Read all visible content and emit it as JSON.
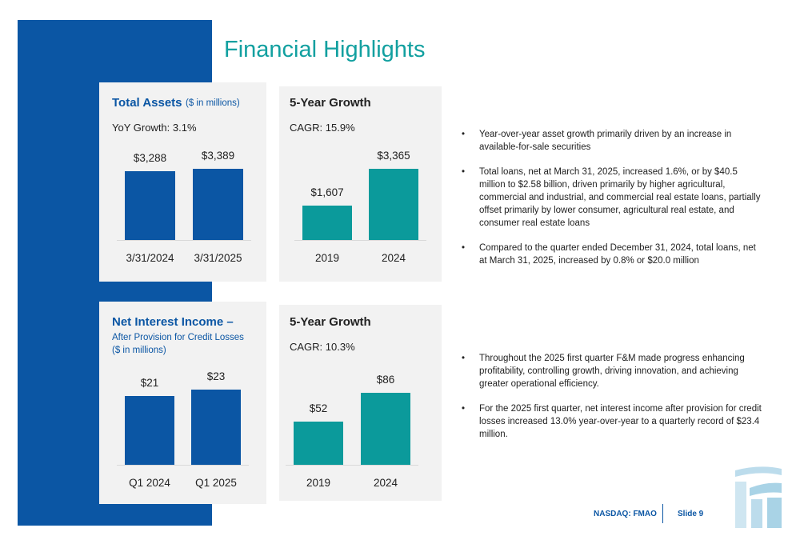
{
  "title": "Financial Highlights",
  "chart_data": [
    {
      "type": "bar",
      "title": "Total Assets",
      "subtitle": [
        "($ in millions)"
      ],
      "annotation": "YoY Growth: 3.1%",
      "categories": [
        "3/31/2024",
        "3/31/2025"
      ],
      "values": [
        3288,
        3389
      ],
      "value_labels": [
        "$3,288",
        "$3,389"
      ],
      "color": "#0b56a4"
    },
    {
      "type": "bar",
      "title": "5-Year Growth",
      "annotation": "CAGR: 15.9%",
      "categories": [
        "2019",
        "2024"
      ],
      "values": [
        1607,
        3365
      ],
      "value_labels": [
        "$1,607",
        "$3,365"
      ],
      "color": "#0b9a9b"
    },
    {
      "type": "bar",
      "title": "Net Interest Income –",
      "subtitle": [
        "After Provision for Credit Losses",
        "($ in millions)"
      ],
      "categories": [
        "Q1 2024",
        "Q1 2025"
      ],
      "values": [
        21,
        23
      ],
      "value_labels": [
        "$21",
        "$23"
      ],
      "color": "#0b56a4"
    },
    {
      "type": "bar",
      "title": "5-Year Growth",
      "annotation": "CAGR: 10.3%",
      "categories": [
        "2019",
        "2024"
      ],
      "values": [
        52,
        86
      ],
      "value_labels": [
        "$52",
        "$86"
      ],
      "color": "#0b9a9b"
    }
  ],
  "bullets_top": [
    "Year-over-year asset growth primarily driven by an increase in available-for-sale securities",
    "Total loans, net at March 31, 2025, increased 1.6%, or by $40.5 million to $2.58 billion, driven primarily by higher agricultural, commercial and industrial, and commercial real estate loans, partially offset primarily by lower consumer, agricultural real estate, and consumer real estate loans",
    "Compared to the quarter ended December 31, 2024, total loans, net at March 31, 2025, increased by 0.8% or $20.0 million"
  ],
  "bullets_bottom": [
    "Throughout the 2025 first quarter F&M made progress enhancing profitability, controlling growth, driving innovation, and achieving greater operational efficiency.",
    "For the 2025 first quarter, net interest income after provision for credit losses increased 13.0% year-over-year to a quarterly record of $23.4 million."
  ],
  "footer": {
    "ticker": "NASDAQ: FMAO",
    "slide": "Slide 9"
  }
}
